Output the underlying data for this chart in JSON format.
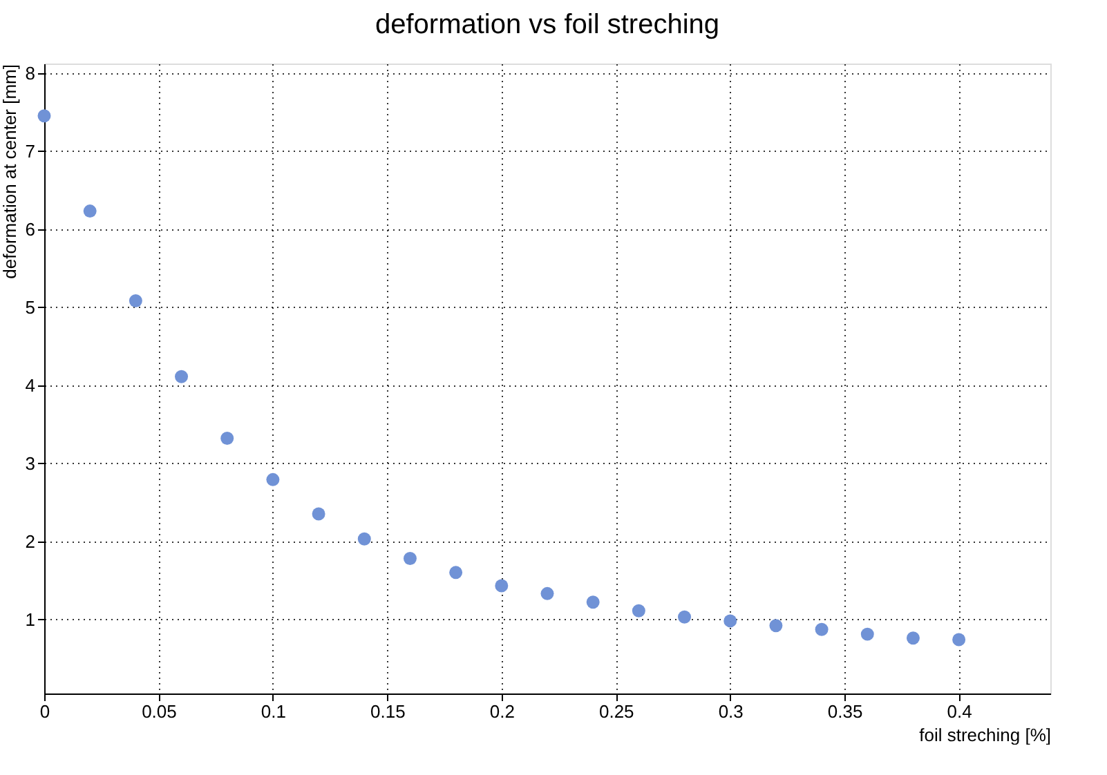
{
  "chart_data": {
    "type": "scatter",
    "title": "deformation vs foil streching",
    "xlabel": "foil streching [%]",
    "ylabel": "deformation at center [mm]",
    "x": [
      0,
      0.02,
      0.04,
      0.06,
      0.08,
      0.1,
      0.12,
      0.14,
      0.16,
      0.18,
      0.2,
      0.22,
      0.24,
      0.26,
      0.28,
      0.3,
      0.32,
      0.34,
      0.36,
      0.38,
      0.4
    ],
    "series": [
      {
        "color": "#7092d6",
        "values": [
          7.45,
          6.23,
          5.08,
          4.11,
          3.32,
          2.79,
          2.35,
          2.03,
          1.78,
          1.6,
          1.43,
          1.33,
          1.22,
          1.11,
          1.03,
          0.98,
          0.92,
          0.87,
          0.81,
          0.76,
          0.74
        ]
      }
    ],
    "xlim": [
      0,
      0.44
    ],
    "xticks": [
      0,
      0.05,
      0.1,
      0.15,
      0.2,
      0.25,
      0.3,
      0.35,
      0.4
    ],
    "ylim": [
      0.05,
      8.12
    ],
    "yticks": [
      1,
      2,
      3,
      4,
      5,
      6,
      7,
      8
    ],
    "grid": true,
    "marker": "circle",
    "legend": false
  }
}
